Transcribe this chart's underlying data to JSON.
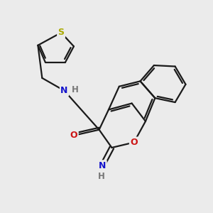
{
  "bg_color": "#ebebeb",
  "bond_color": "#1a1a1a",
  "bond_width": 1.6,
  "S_color": "#aaaa00",
  "N_color": "#1414cc",
  "O_color": "#cc1414",
  "H_color": "#777777",
  "fig_width": 3.0,
  "fig_height": 3.0,
  "dpi": 100,
  "xlim": [
    0,
    10
  ],
  "ylim": [
    0,
    10
  ]
}
